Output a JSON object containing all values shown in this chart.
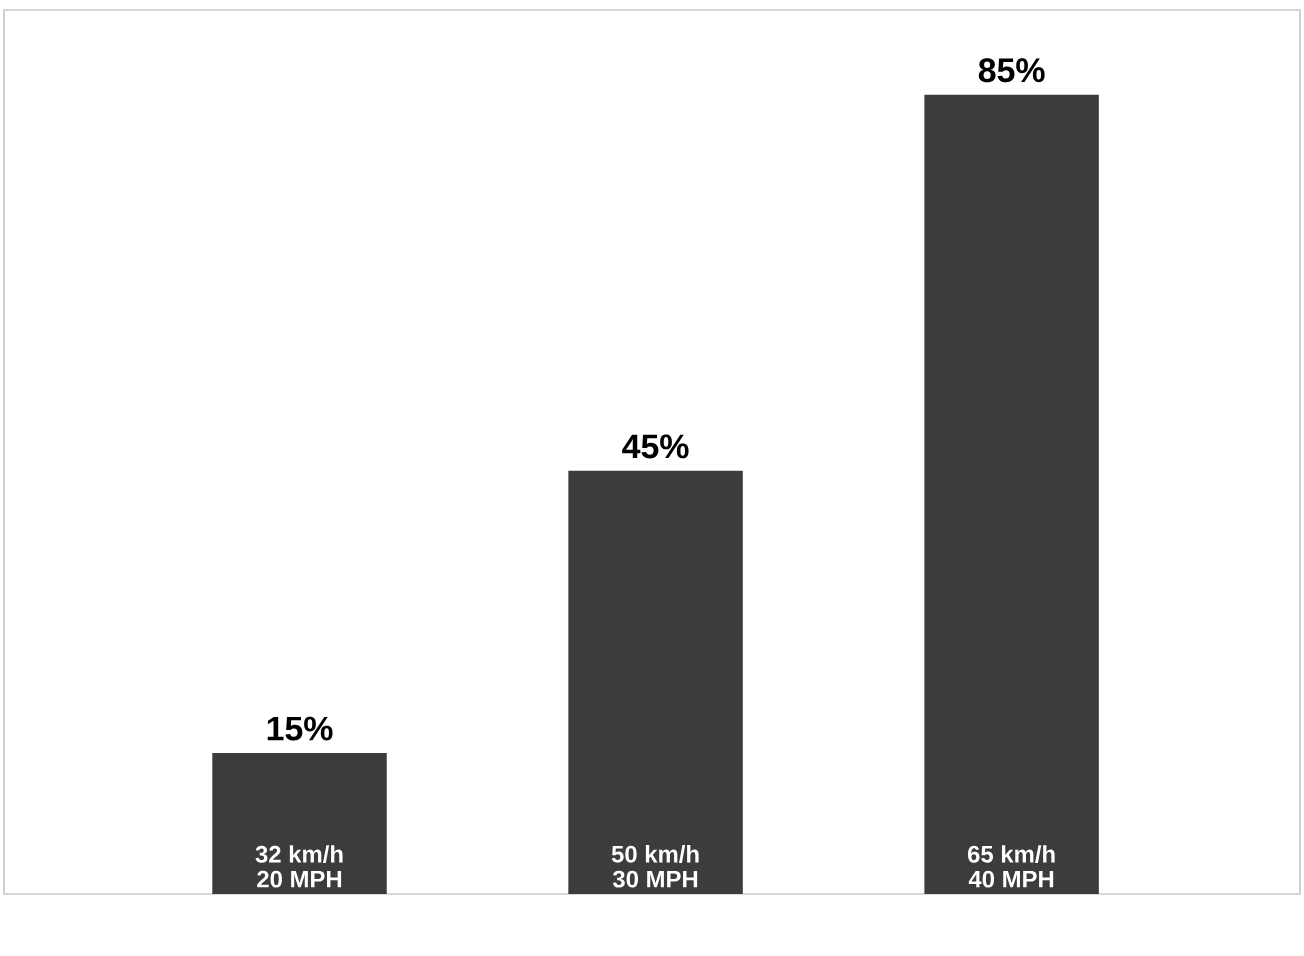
{
  "chart_data": {
    "type": "bar",
    "categories": [
      "32 km/h 20 MPH",
      "50 km/h 30 MPH",
      "65 km/h 40 MPH"
    ],
    "values": [
      15,
      45,
      85
    ],
    "value_labels": [
      "15%",
      "45%",
      "85%"
    ],
    "color": "#3c3c3c",
    "ylim": [
      0,
      94
    ]
  }
}
